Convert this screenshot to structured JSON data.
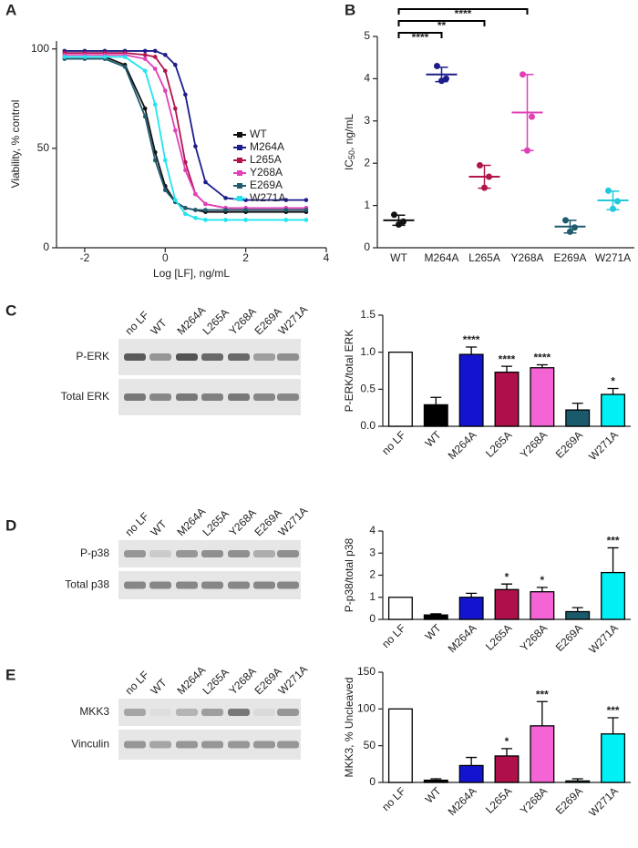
{
  "panel_labels": [
    "A",
    "B",
    "C",
    "D",
    "E"
  ],
  "blots": [
    {
      "lanes": [
        "no LF",
        "WT",
        "M264A",
        "L265A",
        "Y268A",
        "E269A",
        "W271A"
      ],
      "rows": [
        "P-ERK",
        "Total ERK"
      ]
    },
    {
      "lanes": [
        "no LF",
        "WT",
        "M264A",
        "L265A",
        "Y268A",
        "E269A",
        "W271A"
      ],
      "rows": [
        "P-p38",
        "Total p38"
      ]
    },
    {
      "lanes": [
        "no LF",
        "WT",
        "M264A",
        "L265A",
        "Y268A",
        "E269A",
        "W271A"
      ],
      "rows": [
        "MKK3",
        "Vinculin"
      ]
    }
  ],
  "chart_data": [
    {
      "type": "line",
      "xlabel": "Log [LF], ng/mL",
      "ylabel": "Viability, % control",
      "xlim": [
        -2.7,
        4
      ],
      "xticks": [
        -2,
        0,
        2,
        4
      ],
      "ylim": [
        0,
        104
      ],
      "yticks": [
        0,
        50,
        100
      ],
      "x": [
        -2.5,
        -2,
        -1.5,
        -1,
        -0.5,
        -0.25,
        0,
        0.25,
        0.5,
        0.75,
        1,
        1.5,
        2,
        3,
        3.5
      ],
      "series": [
        {
          "name": "WT",
          "color": "#111111",
          "values": [
            96,
            96,
            96,
            92,
            70,
            48,
            31,
            23,
            20,
            19,
            18,
            18,
            18,
            18,
            18
          ]
        },
        {
          "name": "M264A",
          "color": "#1c1c8a",
          "values": [
            99,
            99,
            99,
            99,
            99,
            99,
            97,
            92,
            77,
            51,
            33,
            25,
            24,
            24,
            24
          ]
        },
        {
          "name": "L265A",
          "color": "#b0154c",
          "values": [
            98,
            98,
            98,
            98,
            97,
            96,
            89,
            70,
            43,
            27,
            22,
            20,
            20,
            20,
            20
          ]
        },
        {
          "name": "Y268A",
          "color": "#e040b8",
          "values": [
            97,
            97,
            97,
            97,
            95,
            90,
            79,
            59,
            39,
            27,
            22,
            20,
            20,
            20,
            20
          ]
        },
        {
          "name": "E269A",
          "color": "#1f5a6e",
          "values": [
            95,
            95,
            95,
            91,
            66,
            44,
            29,
            23,
            20,
            19,
            19,
            19,
            19,
            19,
            19
          ]
        },
        {
          "name": "W271A",
          "color": "#22e4ee",
          "values": [
            96,
            96,
            96,
            96,
            89,
            72,
            44,
            24,
            17,
            15,
            14,
            14,
            14,
            14,
            14
          ]
        }
      ]
    },
    {
      "type": "dot",
      "ylabel": "IC",
      "ylabel_sub": "50",
      "ylabel_rest": ", ng/mL",
      "categories": [
        "WT",
        "M264A",
        "L265A",
        "Y268A",
        "E269A",
        "W271A"
      ],
      "colors": [
        "#111111",
        "#1c1c8a",
        "#b0154c",
        "#e040b8",
        "#1f5a6e",
        "#22c8dc"
      ],
      "ylim": [
        0,
        5
      ],
      "yticks": [
        0,
        1,
        2,
        3,
        4,
        5
      ],
      "points": [
        [
          0.78,
          0.55,
          0.62
        ],
        [
          4.3,
          3.95,
          4.0
        ],
        [
          1.95,
          1.42,
          1.68
        ],
        [
          4.1,
          2.3,
          3.1
        ],
        [
          0.65,
          0.38,
          0.48
        ],
        [
          1.35,
          0.92,
          1.1
        ]
      ],
      "values": [
        0.65,
        4.1,
        1.68,
        3.2,
        0.5,
        1.12
      ],
      "errors": [
        0.12,
        0.17,
        0.27,
        0.9,
        0.15,
        0.22
      ],
      "brackets": [
        {
          "from": 0,
          "to": 3,
          "label": "****"
        },
        {
          "from": 0,
          "to": 2,
          "label": "**"
        },
        {
          "from": 0,
          "to": 1,
          "label": "****"
        }
      ]
    },
    {
      "type": "bar",
      "ylabel": "P-ERK/total ERK",
      "categories": [
        "no LF",
        "WT",
        "M264A",
        "L265A",
        "Y268A",
        "E269A",
        "W271A"
      ],
      "colors": [
        "#ffffff",
        "#000000",
        "#1414d0",
        "#b0104a",
        "#f464d4",
        "#1a5a6a",
        "#00f0f4"
      ],
      "ylim": [
        0,
        1.5
      ],
      "yticks": [
        {
          "value": 0,
          "label": "0.0"
        },
        0.5,
        {
          "value": 1,
          "label": "1.0"
        },
        1.5
      ],
      "values": [
        1.0,
        0.29,
        0.97,
        0.73,
        0.79,
        0.22,
        0.43
      ],
      "errors": [
        0,
        0.1,
        0.1,
        0.08,
        0.04,
        0.09,
        0.08
      ],
      "annotations": [
        {
          "index": 2,
          "label": "****"
        },
        {
          "index": 3,
          "label": "****"
        },
        {
          "index": 4,
          "label": "****"
        },
        {
          "index": 6,
          "label": "*"
        }
      ]
    },
    {
      "type": "bar",
      "ylabel": "P-p38/total p38",
      "categories": [
        "no LF",
        "WT",
        "M264A",
        "L265A",
        "Y268A",
        "E269A",
        "W271A"
      ],
      "colors": [
        "#ffffff",
        "#000000",
        "#1414d0",
        "#b0104a",
        "#f464d4",
        "#1a5a6a",
        "#00f0f4"
      ],
      "ylim": [
        0,
        4
      ],
      "yticks": [
        0,
        1,
        2,
        3,
        4
      ],
      "values": [
        1.0,
        0.2,
        1.0,
        1.35,
        1.25,
        0.35,
        2.12
      ],
      "errors": [
        0,
        0.05,
        0.18,
        0.25,
        0.2,
        0.18,
        1.12
      ],
      "annotations": [
        {
          "index": 3,
          "label": "*"
        },
        {
          "index": 4,
          "label": "*"
        },
        {
          "index": 6,
          "label": "***"
        }
      ]
    },
    {
      "type": "bar",
      "ylabel": "MKK3, % Uncleaved",
      "categories": [
        "no LF",
        "WT",
        "M264A",
        "L265A",
        "Y268A",
        "E269A",
        "W271A"
      ],
      "colors": [
        "#ffffff",
        "#000000",
        "#1414d0",
        "#b0104a",
        "#f464d4",
        "#1a5a6a",
        "#00f0f4"
      ],
      "ylim": [
        0,
        150
      ],
      "yticks": [
        0,
        50,
        100,
        150
      ],
      "values": [
        100,
        3,
        23,
        36,
        77,
        2,
        66
      ],
      "errors": [
        0,
        2,
        11,
        10,
        33,
        3,
        22
      ],
      "annotations": [
        {
          "index": 3,
          "label": "*"
        },
        {
          "index": 4,
          "label": "***"
        },
        {
          "index": 6,
          "label": "***"
        }
      ]
    }
  ]
}
